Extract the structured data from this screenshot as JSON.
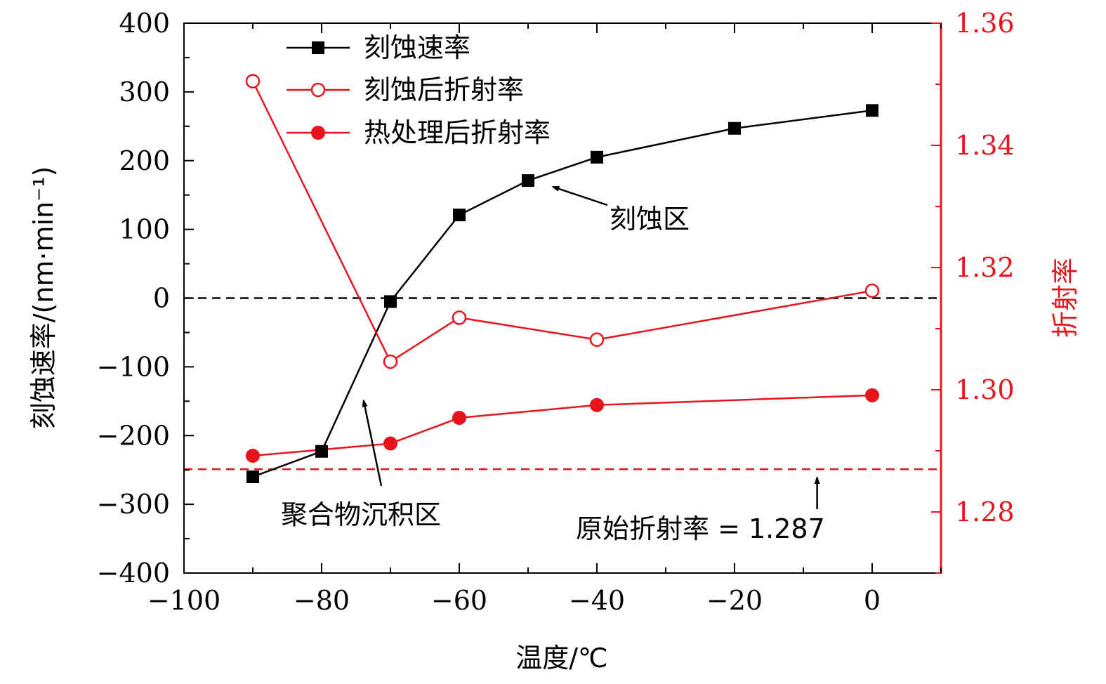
{
  "chart_data": {
    "type": "line",
    "xlabel": "温度/℃",
    "ylabel_left": "刻蚀速率/(nm·min⁻¹)",
    "ylabel_right": "折射率",
    "xlim": [
      -100,
      10
    ],
    "ylim_left": [
      -400,
      400
    ],
    "ylim_right": [
      1.27,
      1.36
    ],
    "x_ticks": [
      -100,
      -80,
      -60,
      -40,
      -20,
      0
    ],
    "x_tick_labels": [
      "−100",
      "−80",
      "−60",
      "−40",
      "−20",
      "0"
    ],
    "y_left_ticks": [
      400,
      300,
      200,
      100,
      0,
      -100,
      -200,
      -300,
      -400
    ],
    "y_left_tick_labels": [
      "400",
      "300",
      "200",
      "100",
      "0",
      "−100",
      "−200",
      "−300",
      "−400"
    ],
    "y_right_ticks": [
      1.36,
      1.34,
      1.32,
      1.3,
      1.28
    ],
    "y_right_tick_labels": [
      "1.36",
      "1.34",
      "1.32",
      "1.30",
      "1.28"
    ],
    "series": [
      {
        "name": "刻蚀速率",
        "axis": "left",
        "color": "#000000",
        "marker": "square",
        "x": [
          -90,
          -80,
          -70,
          -60,
          -50,
          -40,
          -20,
          0
        ],
        "y": [
          -260,
          -223,
          -5,
          121,
          171,
          205,
          247,
          273
        ]
      },
      {
        "name": "刻蚀后折射率",
        "axis": "right",
        "color": "#e8141c",
        "marker": "open-circle",
        "x": [
          -90,
          -70,
          -60,
          -40,
          0
        ],
        "y": [
          1.3505,
          1.3046,
          1.3118,
          1.3082,
          1.3162
        ]
      },
      {
        "name": "热处理后折射率",
        "axis": "right",
        "color": "#e8141c",
        "marker": "filled-circle",
        "x": [
          -90,
          -70,
          -60,
          -40,
          0
        ],
        "y": [
          1.2892,
          1.2912,
          1.2954,
          1.2975,
          1.2991
        ]
      }
    ],
    "reference_lines": [
      {
        "axis": "left",
        "y": 0,
        "color": "#000000",
        "style": "dashed"
      },
      {
        "axis": "right",
        "y": 1.287,
        "color": "#e8141c",
        "style": "dashed"
      }
    ],
    "legend_position": "top-left",
    "annotations": [
      {
        "text": "刻蚀区",
        "arrow_to": [
          -47,
          165
        ],
        "axis": "left"
      },
      {
        "text": "聚合物沉积区",
        "arrow_to": [
          -74,
          -145
        ],
        "axis": "left"
      },
      {
        "text": "原始折射率 = 1.287",
        "arrow_to": [
          -8,
          1.287
        ],
        "axis": "right"
      }
    ]
  }
}
